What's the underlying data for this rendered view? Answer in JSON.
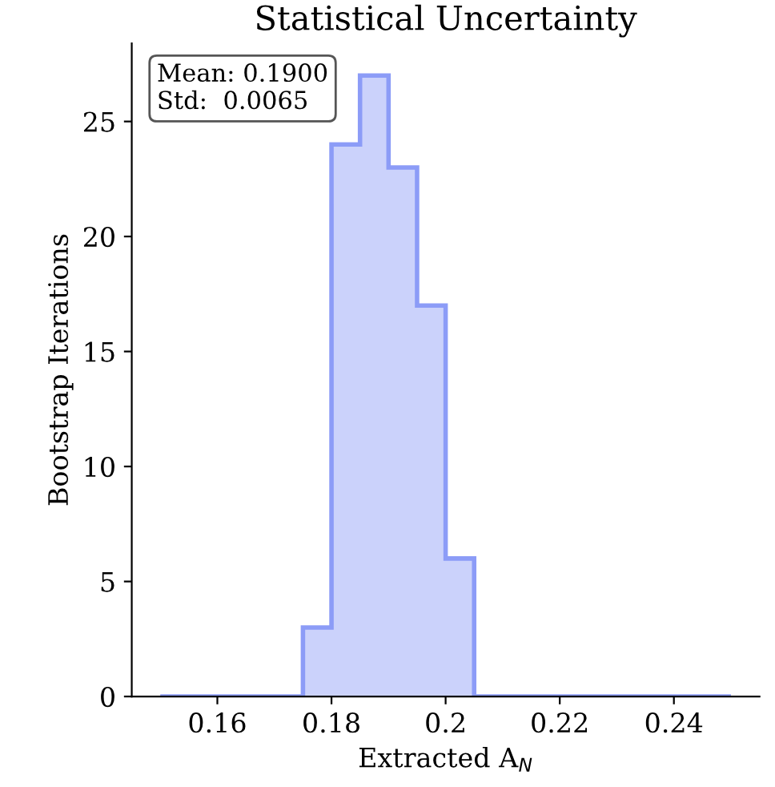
{
  "chart_data": {
    "type": "histogram",
    "title": "Statistical Uncertainty",
    "xlabel": "Extracted A$_{N}$",
    "ylabel": "Bootstrap Iterations",
    "bins": [
      0.15,
      0.155,
      0.16,
      0.165,
      0.17,
      0.175,
      0.18,
      0.185,
      0.19,
      0.195,
      0.2,
      0.205,
      0.21,
      0.215,
      0.22,
      0.225,
      0.23,
      0.235,
      0.24,
      0.245,
      0.25
    ],
    "values": [
      0,
      0,
      0,
      0,
      0,
      3,
      24,
      27,
      23,
      17,
      6,
      0,
      0,
      0,
      0,
      0,
      0,
      0,
      0,
      0
    ],
    "color": "#8c9cf7",
    "annotations": [
      "Mean: 0.1900\nStd:  0.0065"
    ],
    "xlim": [
      0.145,
      0.255
    ],
    "xticks": [
      0.16,
      0.18,
      0.2,
      0.22,
      0.24
    ],
    "ylim": [
      0,
      28.4
    ],
    "yticks": [
      0,
      5,
      10,
      15,
      20,
      25
    ],
    "grid": false,
    "legend": false
  }
}
